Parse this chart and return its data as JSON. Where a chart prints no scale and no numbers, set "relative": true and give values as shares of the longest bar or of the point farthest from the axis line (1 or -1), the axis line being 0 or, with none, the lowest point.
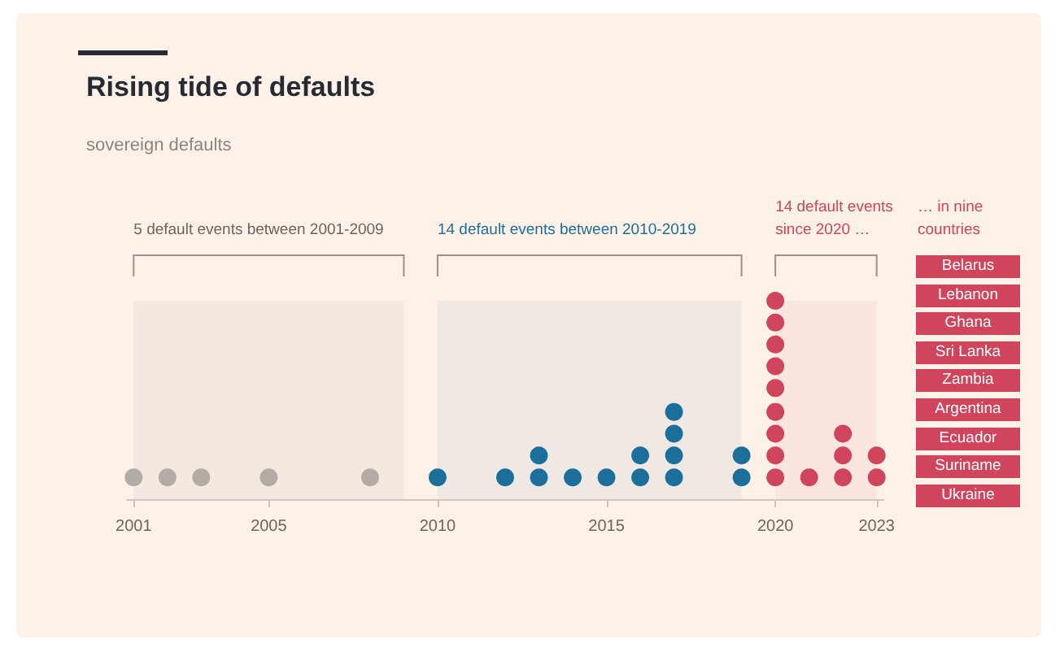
{
  "chart_data": {
    "type": "scatter",
    "title": "Rising tide of defaults",
    "subtitle": "sovereign defaults",
    "series": [
      {
        "color": "#b3aca6",
        "x": [
          2001,
          2002,
          2003,
          2005,
          2008
        ],
        "values": [
          0.11,
          0.11,
          0.11,
          0.11,
          0.11
        ]
      },
      {
        "color": "#1c6f9b",
        "x": [
          2010,
          2012,
          2013,
          2013,
          2014,
          2015,
          2016,
          2016,
          2017,
          2017,
          2017,
          2017,
          2019,
          2019
        ],
        "values": [
          0.11,
          0.11,
          0.11,
          0.22,
          0.11,
          0.11,
          0.11,
          0.22,
          0.11,
          0.22,
          0.33,
          0.44,
          0.11,
          0.22
        ]
      },
      {
        "color": "#d0455c",
        "x": [
          2020,
          2020,
          2020,
          2020,
          2020,
          2020,
          2020,
          2020,
          2020,
          2021,
          2022,
          2022,
          2022,
          2023,
          2023
        ],
        "values": [
          0.11,
          0.22,
          0.33,
          0.44,
          0.56,
          0.67,
          0.78,
          0.89,
          1,
          0.11,
          0.11,
          0.22,
          0.33,
          0.11,
          0.22
        ]
      }
    ],
    "relative": true,
    "xlim": [
      2000.8,
      2023.2
    ],
    "xticks": [
      2001,
      2005,
      2010,
      2015,
      2020,
      2023
    ],
    "tick_labels": "x",
    "marker": "circle",
    "bands": [
      {
        "axis": "x",
        "from": 2001,
        "to": 2009,
        "label": "5 default events between 2001-2009",
        "color": "#6b6560"
      },
      {
        "axis": "x",
        "from": 2010,
        "to": 2019,
        "label": "14 default events between 2010-2019",
        "color": "#1c6f9b"
      },
      {
        "axis": "x",
        "from": 2020,
        "to": 2023,
        "label": "14 default events since 2020 …",
        "color": "#d0455c"
      }
    ],
    "annotations": [
      "… in nine countries",
      "Belarus",
      "Lebanon",
      "Ghana",
      "Sri Lanka",
      "Zambia",
      "Argentina",
      "Ecuador",
      "Suriname",
      "Ukraine"
    ]
  }
}
